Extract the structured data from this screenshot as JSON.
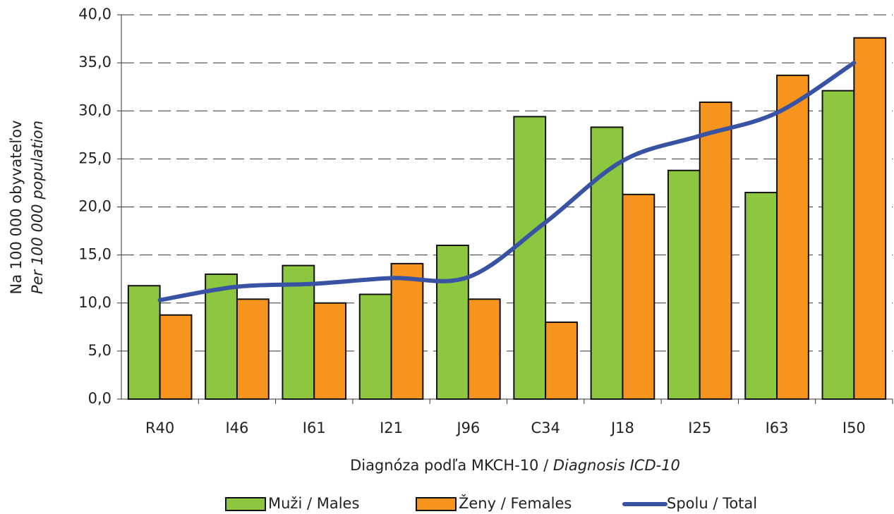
{
  "chart_data": {
    "type": "bar",
    "x_label": "Diagnóza podľa MKCH-10 / ",
    "x_label_italic": "Diagnosis ICD-10",
    "y_label": "Na 100 000 obyvateľov",
    "y_label_italic": "Per 100 000 population",
    "categories": [
      "R40",
      "I46",
      "I61",
      "I21",
      "J96",
      "C34",
      "J18",
      "I25",
      "I63",
      "I50"
    ],
    "series": [
      {
        "name": "Muži / Males",
        "color": "#8dc63f",
        "type": "bar",
        "values": [
          11.8,
          13.0,
          13.9,
          10.9,
          16.0,
          29.4,
          28.3,
          23.8,
          21.5,
          32.1
        ]
      },
      {
        "name": "Ženy / Females",
        "color": "#f7941d",
        "type": "bar",
        "values": [
          8.75,
          10.4,
          10.0,
          14.1,
          10.4,
          8.0,
          21.3,
          30.9,
          33.7,
          37.6
        ]
      },
      {
        "name": "Spolu / Total",
        "color": "#3953a4",
        "type": "line",
        "values": [
          10.3,
          11.7,
          12.0,
          12.6,
          12.7,
          18.4,
          24.8,
          27.4,
          29.8,
          35.0
        ]
      }
    ],
    "ylim": [
      0,
      40
    ],
    "yticks": [
      {
        "value": 0,
        "label": "0,0"
      },
      {
        "value": 5,
        "label": "5,0"
      },
      {
        "value": 10,
        "label": "10,0"
      },
      {
        "value": 15,
        "label": "15,0"
      },
      {
        "value": 20,
        "label": "20,0"
      },
      {
        "value": 25,
        "label": "25,0"
      },
      {
        "value": 30,
        "label": "30,0"
      },
      {
        "value": 35,
        "label": "35,0"
      },
      {
        "value": 40,
        "label": "40,0"
      }
    ],
    "grid": true,
    "legend": "bottom"
  }
}
